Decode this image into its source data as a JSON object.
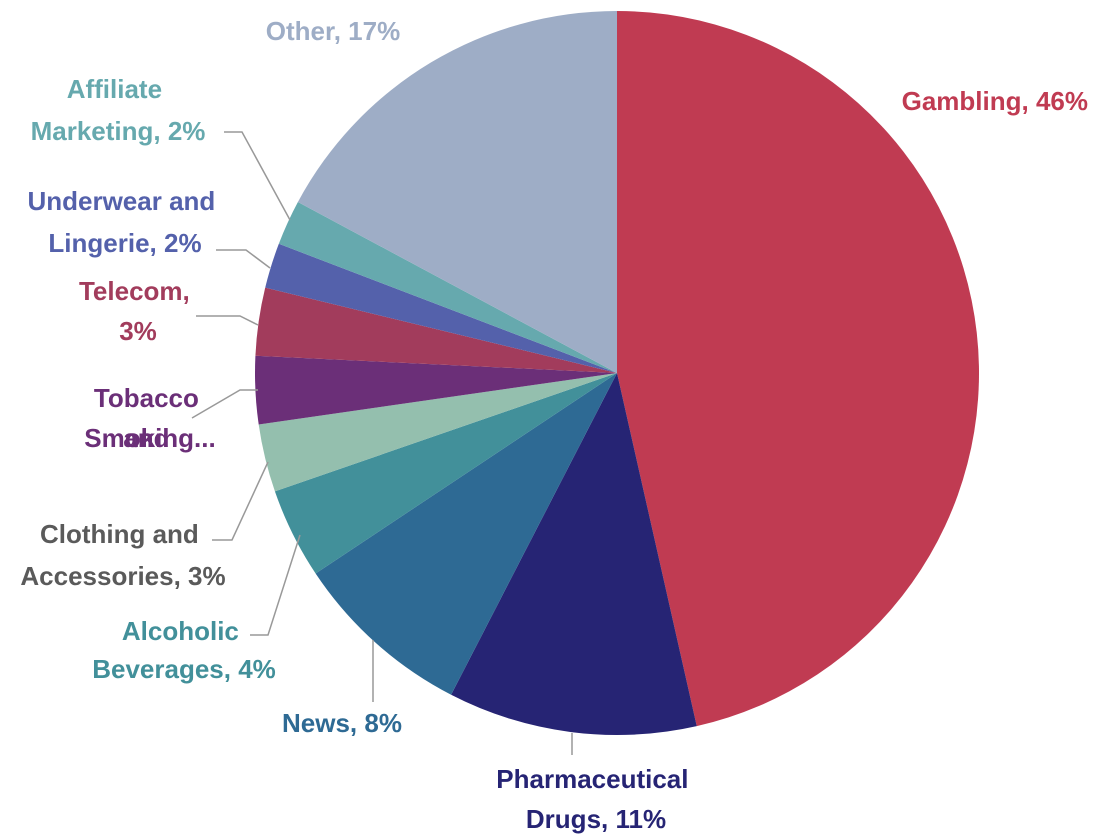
{
  "chart_data": {
    "type": "pie",
    "labels": [
      "Gambling, 46%",
      "Pharmaceutical Drugs, 11%",
      "News, 8%",
      "Alcoholic Beverages, 4%",
      "Clothing and Accessories, 3%",
      "Tobacco and Smoking...",
      "Telecom, 3%",
      "Underwear and Lingerie, 2%",
      "Affiliate Marketing, 2%",
      "Other, 17%"
    ],
    "values": [
      46,
      11,
      8,
      4,
      3,
      3,
      3,
      2,
      2,
      17
    ],
    "colors": [
      "#c03b52",
      "#262474",
      "#2e6a94",
      "#42909a",
      "#94bfae",
      "#6b2f78",
      "#a23c5c",
      "#5461ab",
      "#66a9ae",
      "#9eadc6"
    ],
    "label_colors": [
      "#c03b52",
      "#262474",
      "#2e6a94",
      "#42909a",
      "#5a5a5a",
      "#6b2f78",
      "#a23c5c",
      "#5461ab",
      "#66a9ae",
      "#9eadc6"
    ]
  }
}
